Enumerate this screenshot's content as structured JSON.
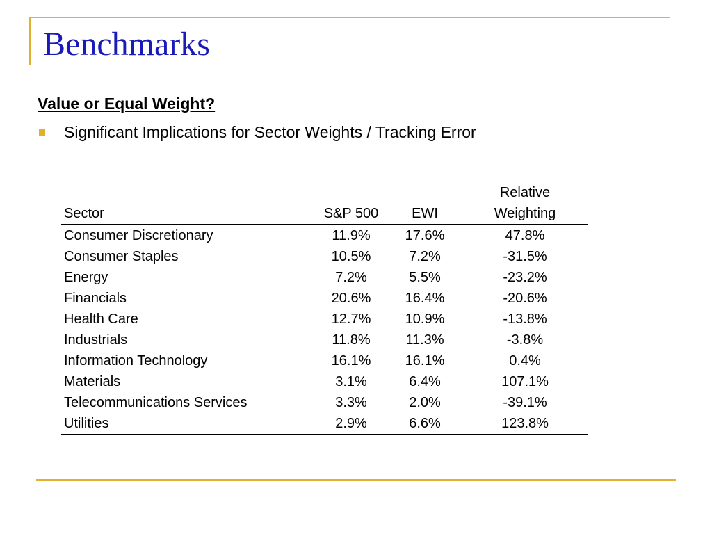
{
  "slide": {
    "title": "Benchmarks",
    "subtitle": "Value or Equal Weight?",
    "bullet": "Significant Implications for Sector Weights / Tracking Error"
  },
  "colors": {
    "title": "#1a1ab8",
    "accent": "#e0b030"
  },
  "table": {
    "headers": {
      "sector": "Sector",
      "sp500": "S&P 500",
      "ewi": "EWI",
      "relative_line1": "Relative",
      "relative_line2": "Weighting"
    },
    "rows": [
      {
        "sector": "Consumer Discretionary",
        "sp500": "11.9%",
        "ewi": "17.6%",
        "relative": "47.8%"
      },
      {
        "sector": "Consumer Staples",
        "sp500": "10.5%",
        "ewi": "7.2%",
        "relative": "-31.5%"
      },
      {
        "sector": "Energy",
        "sp500": "7.2%",
        "ewi": "5.5%",
        "relative": "-23.2%"
      },
      {
        "sector": "Financials",
        "sp500": "20.6%",
        "ewi": "16.4%",
        "relative": "-20.6%"
      },
      {
        "sector": "Health Care",
        "sp500": "12.7%",
        "ewi": "10.9%",
        "relative": "-13.8%"
      },
      {
        "sector": "Industrials",
        "sp500": "11.8%",
        "ewi": "11.3%",
        "relative": "-3.8%"
      },
      {
        "sector": "Information Technology",
        "sp500": "16.1%",
        "ewi": "16.1%",
        "relative": "0.4%"
      },
      {
        "sector": "Materials",
        "sp500": "3.1%",
        "ewi": "6.4%",
        "relative": "107.1%"
      },
      {
        "sector": "Telecommunications Services",
        "sp500": "3.3%",
        "ewi": "2.0%",
        "relative": "-39.1%"
      },
      {
        "sector": "Utilities",
        "sp500": "2.9%",
        "ewi": "6.6%",
        "relative": "123.8%"
      }
    ]
  }
}
